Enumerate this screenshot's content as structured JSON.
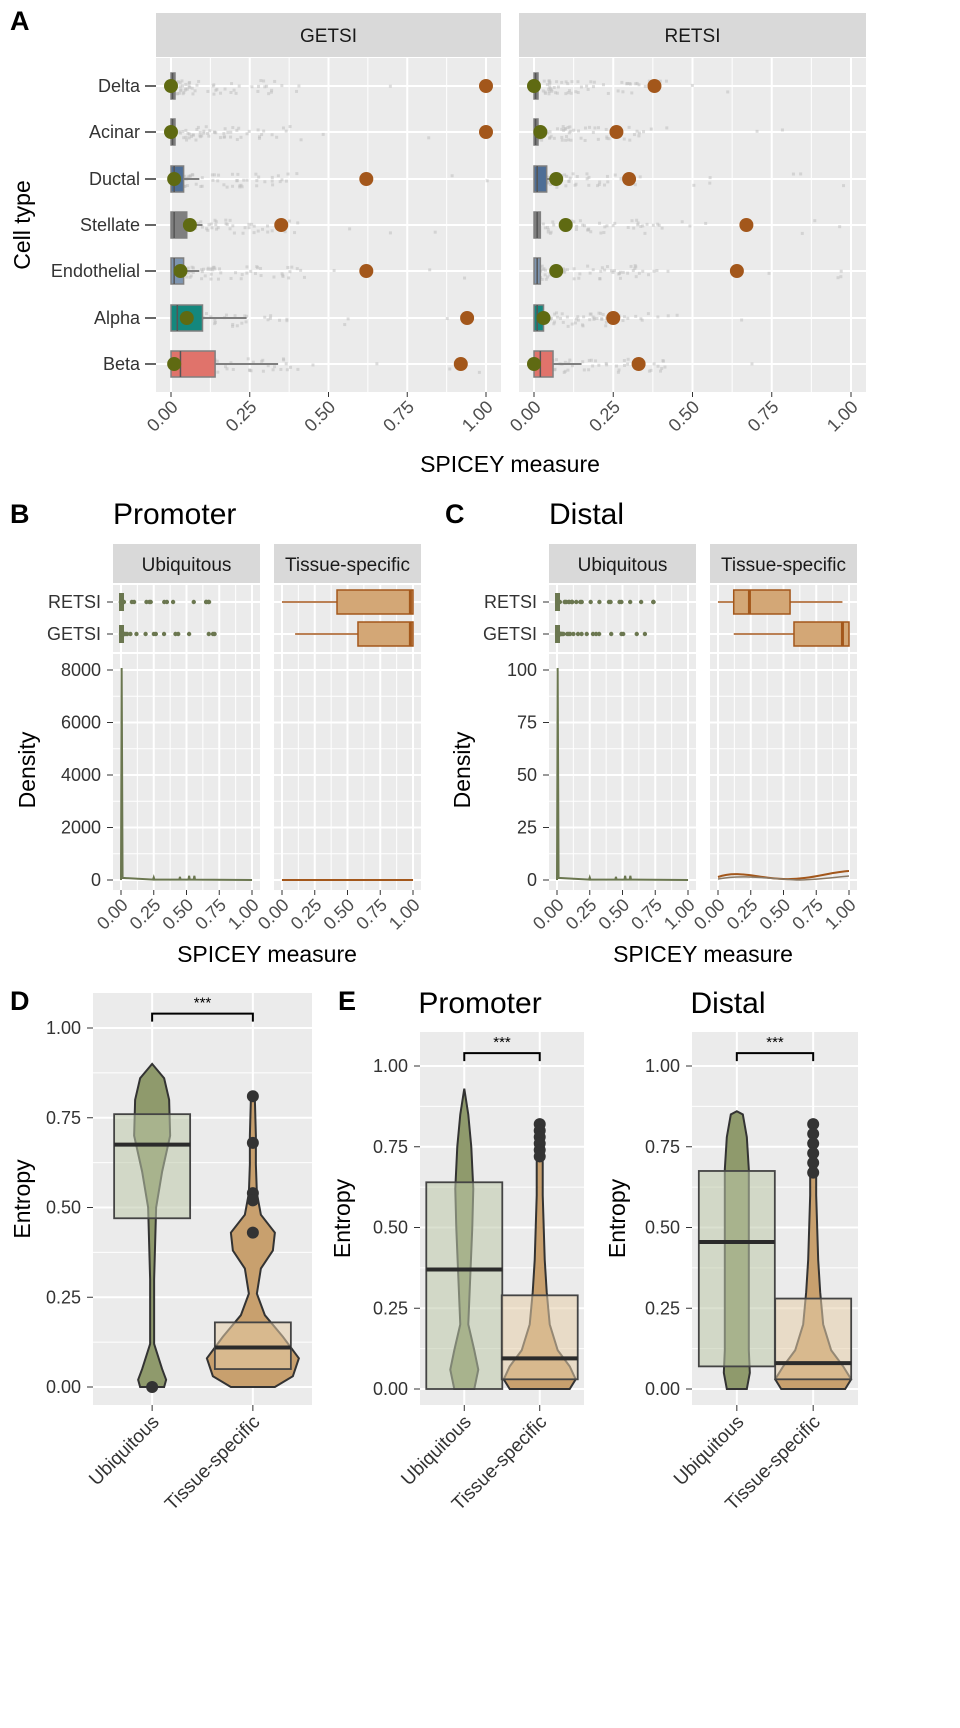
{
  "chart_data": [
    {
      "panel": "A",
      "type": "boxplot",
      "facets": [
        "GETSI",
        "RETSI"
      ],
      "categories": [
        "Delta",
        "Acinar",
        "Ductal",
        "Stellate",
        "Endothelial",
        "Alpha",
        "Beta"
      ],
      "xlabel": "SPICEY measure",
      "ylabel": "Cell type",
      "xlim": [
        0,
        1
      ],
      "xticks": [
        "0.00",
        "0.25",
        "0.50",
        "0.75",
        "1.00"
      ],
      "grid": true,
      "box_colors": {
        "Delta": "#7f7f7f",
        "Acinar": "#7f7f7f",
        "Ductal": "#4e6e96",
        "Stellate": "#7f7f7f",
        "Endothelial": "#7d95b1",
        "Alpha": "#14877d",
        "Beta": "#e0736b"
      },
      "summary": {
        "GETSI": {
          "box": [
            [
              0.0,
              0.005,
              0.01
            ],
            [
              0.0,
              0.005,
              0.01
            ],
            [
              0.0,
              0.01,
              0.04
            ],
            [
              0.0,
              0.01,
              0.05
            ],
            [
              0.0,
              0.01,
              0.04
            ],
            [
              0.0,
              0.02,
              0.1
            ],
            [
              0.0,
              0.03,
              0.14
            ]
          ],
          "whisker_hi": [
            0.02,
            0.02,
            0.09,
            0.1,
            0.09,
            0.24,
            0.34
          ],
          "green_point": [
            0.0,
            0.0,
            0.01,
            0.06,
            0.03,
            0.05,
            0.01
          ],
          "orange_point": [
            1.0,
            1.0,
            0.62,
            0.35,
            0.62,
            0.94,
            0.92
          ]
        },
        "RETSI": {
          "box": [
            [
              0.0,
              0.005,
              0.01
            ],
            [
              0.0,
              0.005,
              0.01
            ],
            [
              0.0,
              0.01,
              0.04
            ],
            [
              0.0,
              0.01,
              0.02
            ],
            [
              0.0,
              0.01,
              0.02
            ],
            [
              0.0,
              0.01,
              0.03
            ],
            [
              0.0,
              0.02,
              0.06
            ]
          ],
          "whisker_hi": [
            0.02,
            0.02,
            0.05,
            0.02,
            0.02,
            0.03,
            0.15
          ],
          "green_point": [
            0.0,
            0.02,
            0.07,
            0.1,
            0.07,
            0.03,
            0.0
          ],
          "orange_point": [
            0.38,
            0.26,
            0.3,
            0.67,
            0.64,
            0.25,
            0.33
          ]
        }
      }
    },
    {
      "panel": "B",
      "title": "Promoter",
      "type": "boxplot+density",
      "facets": [
        "Ubiquitous",
        "Tissue-specific"
      ],
      "box_categories": [
        "RETSI",
        "GETSI"
      ],
      "xlabel": "SPICEY measure",
      "ylabel": "Density",
      "xlim": [
        0,
        1
      ],
      "xticks": [
        "0.00",
        "0.25",
        "0.50",
        "0.75",
        "1.00"
      ],
      "ylim": [
        0,
        8000
      ],
      "yticks": [
        "0",
        "2000",
        "4000",
        "6000",
        "8000"
      ],
      "tissue_specific_box": {
        "RETSI": [
          0.0,
          0.42,
          0.98,
          1.0,
          1.0
        ],
        "GETSI": [
          0.1,
          0.58,
          0.98,
          1.0,
          1.0
        ]
      },
      "ubiquitous_density_peak": 8000
    },
    {
      "panel": "C",
      "title": "Distal",
      "type": "boxplot+density",
      "facets": [
        "Ubiquitous",
        "Tissue-specific"
      ],
      "box_categories": [
        "RETSI",
        "GETSI"
      ],
      "xlabel": "SPICEY measure",
      "ylabel": "Density",
      "xlim": [
        0,
        1
      ],
      "xticks": [
        "0.00",
        "0.25",
        "0.50",
        "0.75",
        "1.00"
      ],
      "ylim": [
        0,
        100
      ],
      "yticks": [
        "0",
        "25",
        "50",
        "75",
        "100"
      ],
      "tissue_specific_box": {
        "RETSI": [
          0.0,
          0.12,
          0.24,
          0.55,
          0.95
        ],
        "GETSI": [
          0.12,
          0.58,
          0.95,
          1.0,
          1.0
        ]
      },
      "ubiquitous_density_peak": 100
    },
    {
      "panel": "D",
      "type": "violin+box",
      "categories": [
        "Ubiquitous",
        "Tissue-specific"
      ],
      "ylabel": "Entropy",
      "ylim": [
        0,
        1
      ],
      "yticks": [
        "0.00",
        "0.25",
        "0.50",
        "0.75",
        "1.00"
      ],
      "box": {
        "Ubiquitous": [
          0.47,
          0.675,
          0.76
        ],
        "Tissue-specific": [
          0.05,
          0.11,
          0.18
        ]
      },
      "significance": "***"
    },
    {
      "panel": "E",
      "type": "violin+box",
      "subplots": [
        {
          "title": "Promoter",
          "categories": [
            "Ubiquitous",
            "Tissue-specific"
          ],
          "ylabel": "Entropy",
          "yticks": [
            "0.00",
            "0.25",
            "0.50",
            "0.75",
            "1.00"
          ],
          "box": {
            "Ubiquitous": [
              0.0,
              0.37,
              0.64
            ],
            "Tissue-specific": [
              0.03,
              0.095,
              0.29
            ]
          },
          "significance": "***"
        },
        {
          "title": "Distal",
          "categories": [
            "Ubiquitous",
            "Tissue-specific"
          ],
          "ylabel": "Entropy",
          "yticks": [
            "0.00",
            "0.25",
            "0.50",
            "0.75",
            "1.00"
          ],
          "box": {
            "Ubiquitous": [
              0.07,
              0.455,
              0.675
            ],
            "Tissue-specific": [
              0.03,
              0.08,
              0.28
            ]
          },
          "significance": "***"
        }
      ]
    }
  ],
  "colors": {
    "panel_bg": "#ebebeb",
    "strip_bg": "#d9d9d9",
    "green": "#6b7750",
    "orange": "#a3571b",
    "tan": "#c49a6c",
    "olive_point": "#5f6a12"
  }
}
